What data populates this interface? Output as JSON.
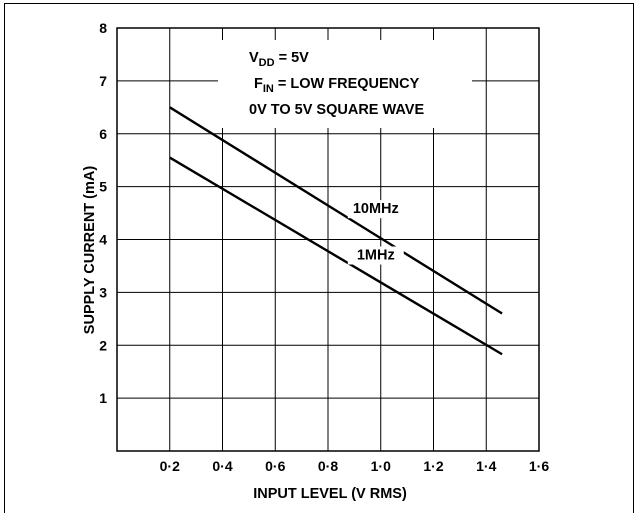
{
  "chart_data": {
    "type": "line",
    "xlabel": "INPUT LEVEL (V RMS)",
    "ylabel": "SUPPLY CURRENT (mA)",
    "xlim": [
      0,
      1.6
    ],
    "ylim": [
      0,
      8
    ],
    "x_ticks": [
      "0·2",
      "0·4",
      "0·6",
      "0·8",
      "1·0",
      "1·2",
      "1·4",
      "1·6"
    ],
    "y_ticks": [
      "1",
      "2",
      "3",
      "4",
      "5",
      "6",
      "7",
      "8"
    ],
    "grid": true,
    "series": [
      {
        "name": "10MHz",
        "x": [
          0.2,
          1.46
        ],
        "y": [
          6.5,
          2.6
        ]
      },
      {
        "name": "1MHz",
        "x": [
          0.2,
          1.46
        ],
        "y": [
          5.55,
          1.83
        ]
      }
    ],
    "annotations": {
      "vdd_main": "V",
      "vdd_sub": "DD",
      "vdd_rest": " = 5V",
      "fin_main": "F",
      "fin_sub": "IN",
      "fin_rest": " = LOW FREQUENCY",
      "wave": "0V TO 5V SQUARE WAVE"
    }
  }
}
